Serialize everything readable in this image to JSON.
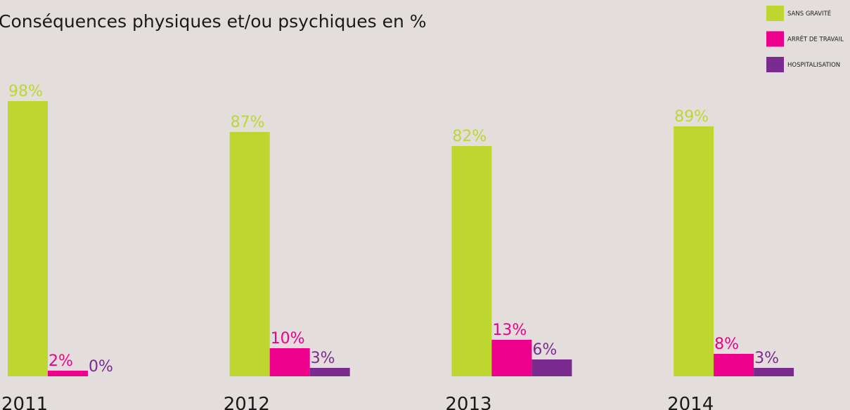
{
  "chart_data": {
    "type": "bar",
    "title": "Conséquences physiques et/ou psychiques en %",
    "categories": [
      "2011",
      "2012",
      "2013",
      "2014"
    ],
    "series": [
      {
        "name": "SANS GRAVITÉ",
        "color": "#bed630",
        "values": [
          98,
          87,
          82,
          89
        ],
        "value_labels": [
          "98%",
          "87%",
          "82%",
          "89%"
        ]
      },
      {
        "name": "ARRÊT DE TRAVAIL",
        "color": "#ec008c",
        "values": [
          2,
          10,
          13,
          8
        ],
        "value_labels": [
          "2%",
          "10%",
          "13%",
          "8%"
        ]
      },
      {
        "name": "HOSPITALISATION",
        "color": "#7b2a90",
        "values": [
          0,
          3,
          6,
          3
        ],
        "value_labels": [
          "0%",
          "3%",
          "6%",
          "3%"
        ]
      }
    ],
    "ylim": [
      0,
      100
    ]
  }
}
